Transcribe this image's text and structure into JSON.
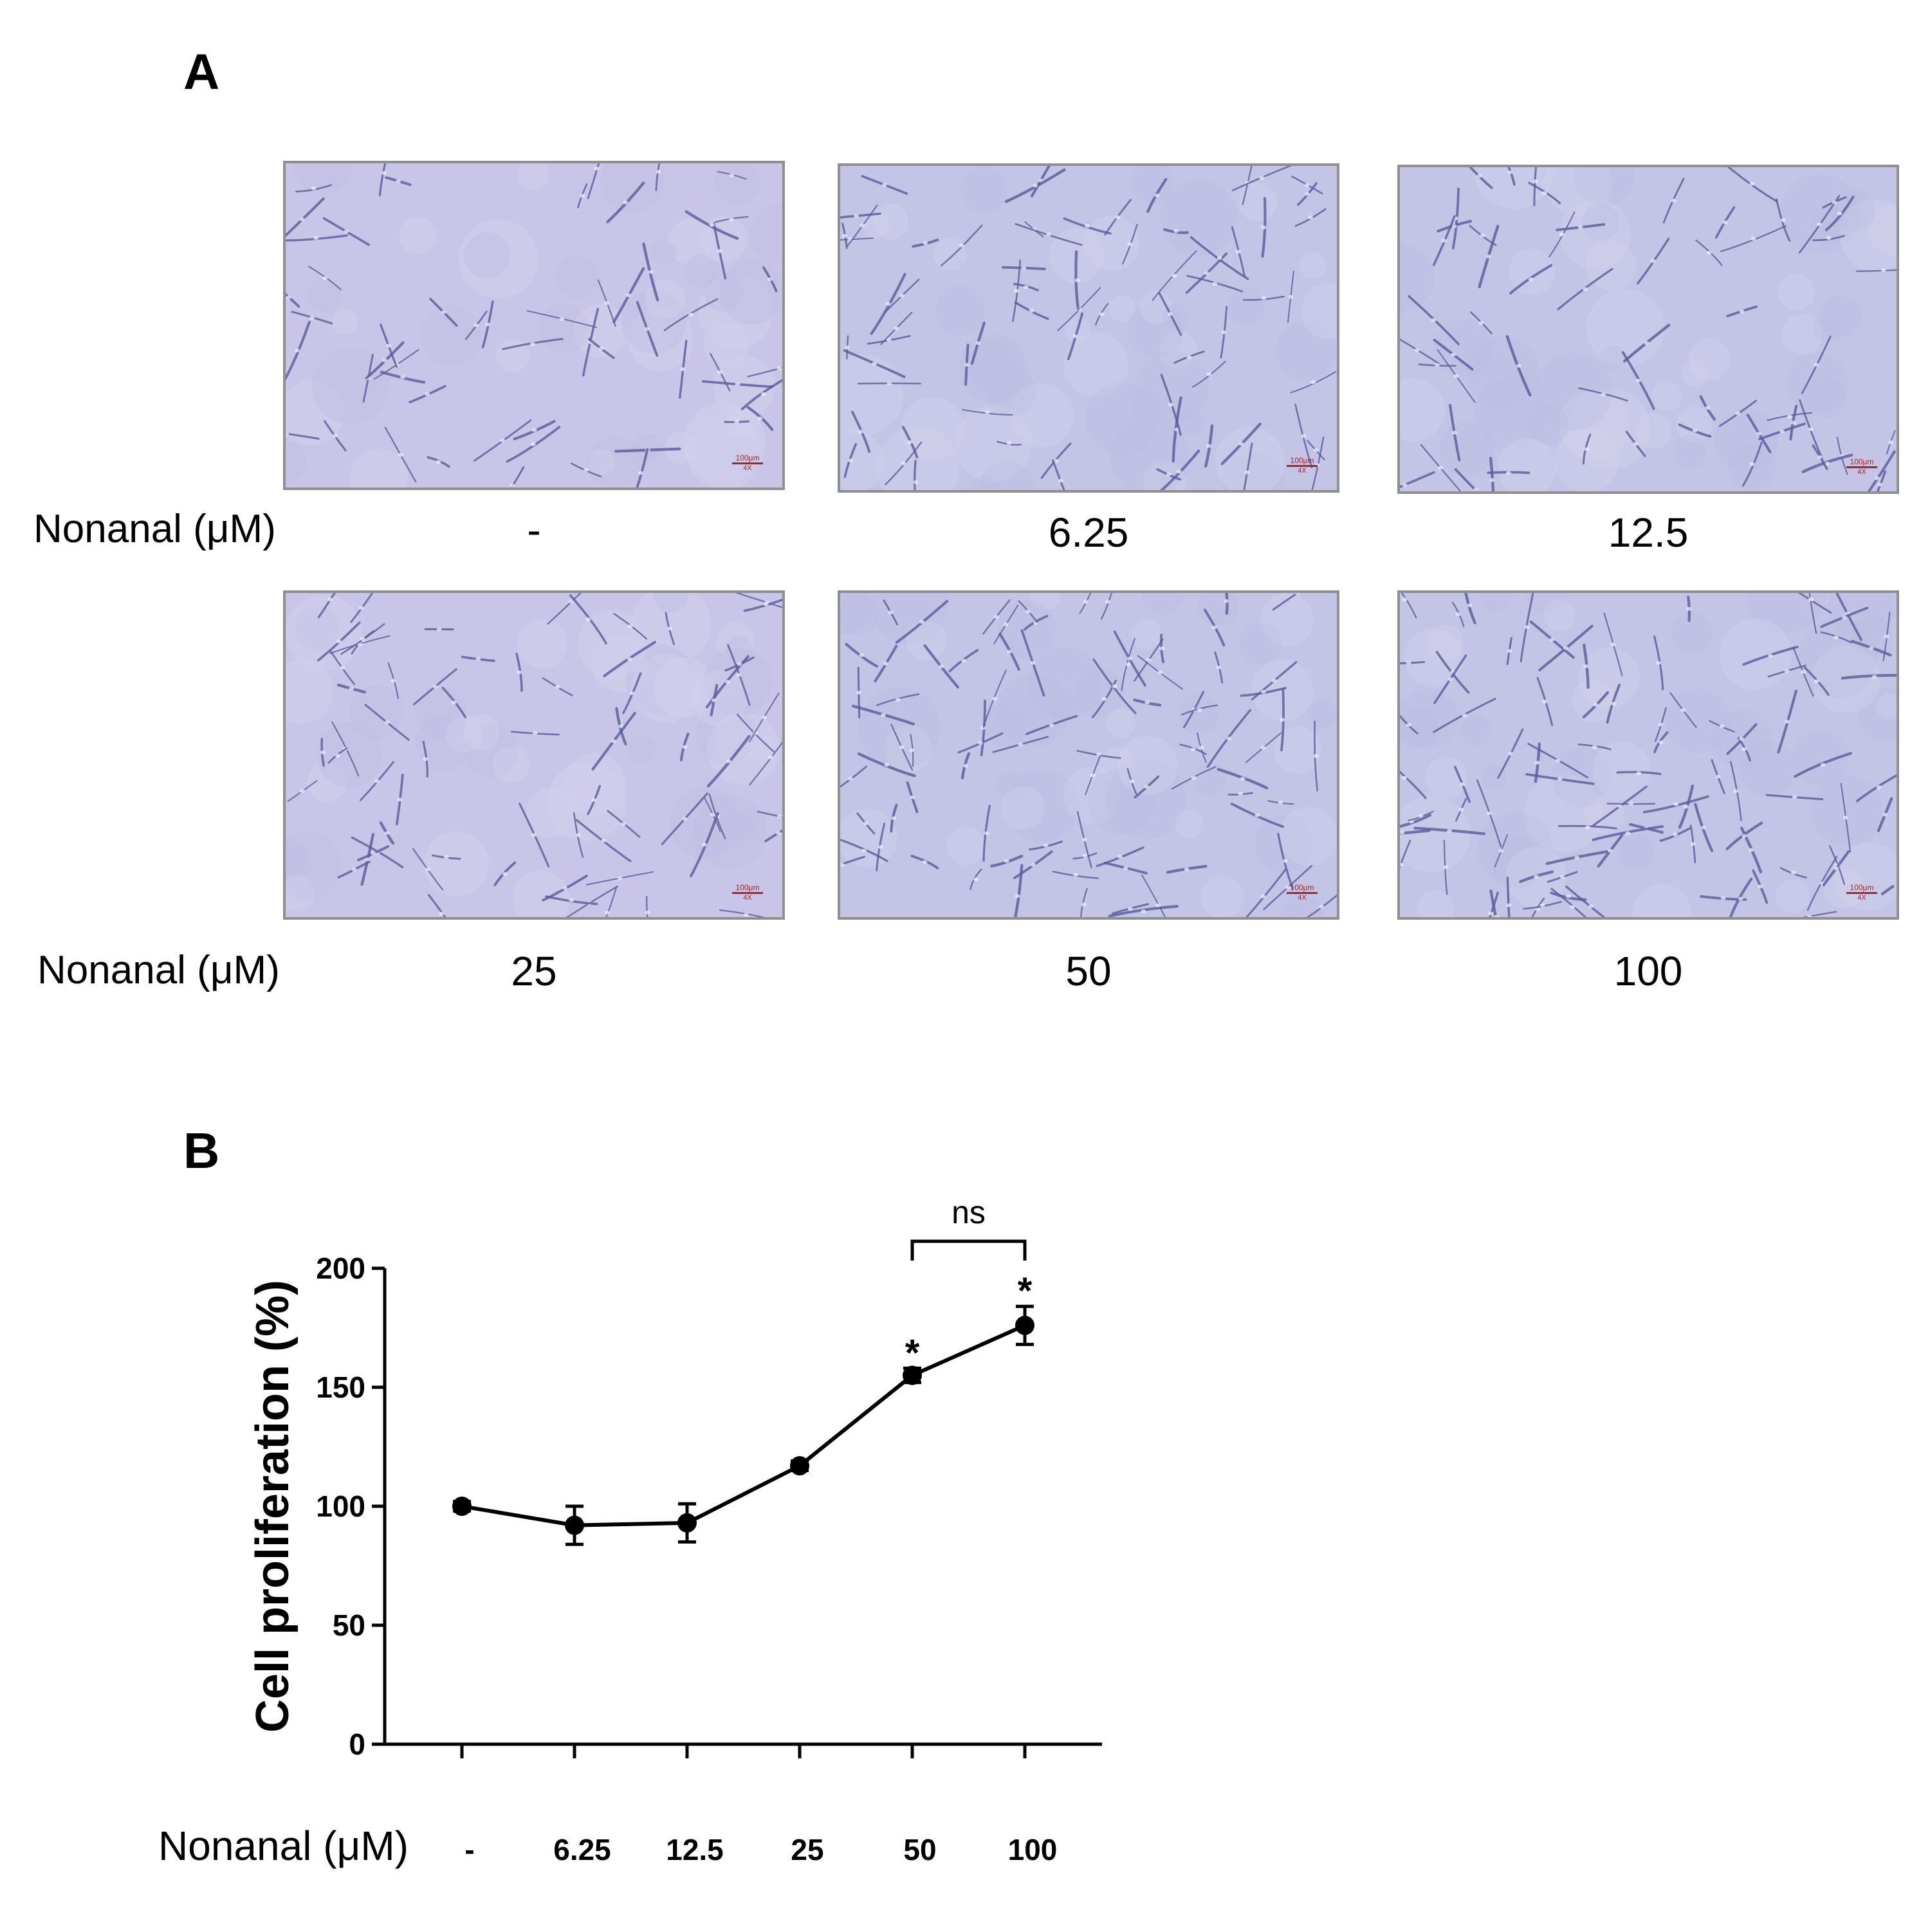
{
  "panel_a": {
    "letter": "A",
    "row_label": "Nonanal (μM)",
    "scale_text": "100μm",
    "magnification": "4X",
    "concentrations": [
      "-",
      "6.25",
      "12.5",
      "25",
      "50",
      "100"
    ]
  },
  "panel_b": {
    "letter": "B"
  },
  "chart_data": {
    "type": "line",
    "ylabel": "Cell proliferation (%)",
    "xlabel": "Nonanal (μM)",
    "categories": [
      "-",
      "6.25",
      "12.5",
      "25",
      "50",
      "100"
    ],
    "series": [
      {
        "values": [
          100,
          92,
          93,
          117,
          155,
          176
        ],
        "errors": [
          2,
          8,
          8,
          2,
          3,
          8
        ]
      }
    ],
    "ylim": [
      0,
      200
    ],
    "yticks": [
      0,
      50,
      100,
      150,
      200
    ],
    "significance": [
      "",
      "",
      "",
      "",
      "*",
      "*"
    ],
    "comparison": {
      "from": "50",
      "to": "100",
      "label": "ns"
    },
    "color": "#000000",
    "grid": false
  }
}
